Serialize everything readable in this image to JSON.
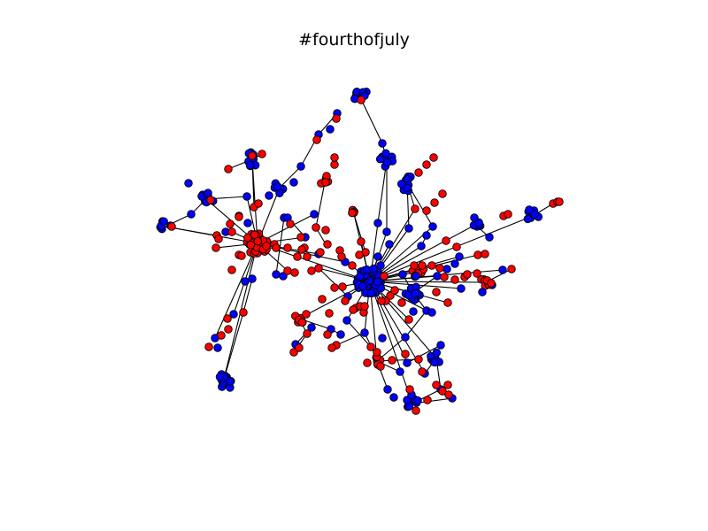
{
  "title": "#fourthofjuly",
  "colors": {
    "blue": "#0000ff",
    "red": "#ff0000",
    "edge": "#000000",
    "background": "#ffffff"
  }
}
